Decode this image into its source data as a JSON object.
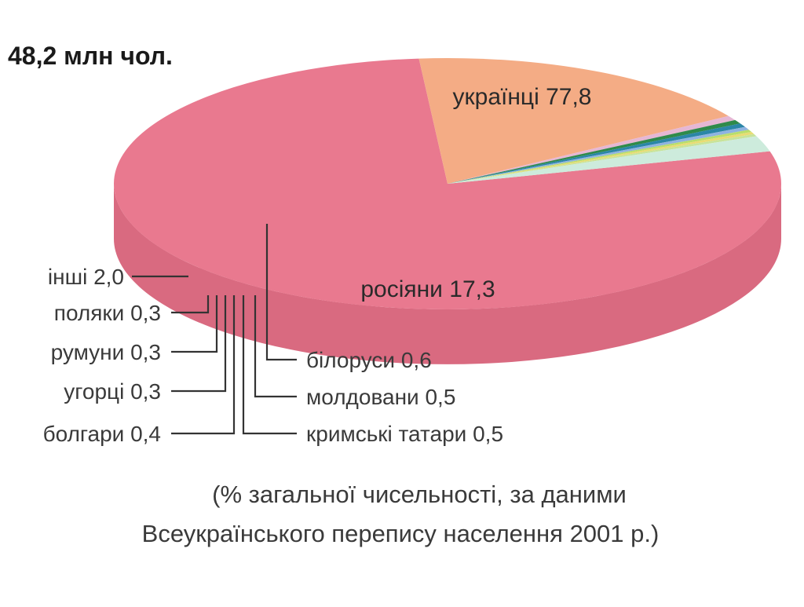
{
  "chart_data": {
    "type": "pie",
    "title": "48,2 млн чол.",
    "slices": [
      {
        "label": "українці",
        "value": 77.8,
        "text": "українці 77,8",
        "color": "#e9798f",
        "side": "#d96a80"
      },
      {
        "label": "росіяни",
        "value": 17.3,
        "text": "росіяни 17,3",
        "color": "#f4ac85",
        "side": "#ee9f78"
      },
      {
        "label": "білоруси",
        "value": 0.6,
        "text": "білоруси 0,6",
        "color": "#e5b7d4",
        "side": "#d9a5c6"
      },
      {
        "label": "молдовани",
        "value": 0.5,
        "text": "молдовани 0,5",
        "color": "#2f8a4a",
        "side": "#1f7a3c"
      },
      {
        "label": "кримські татари",
        "value": 0.5,
        "text": "кримські татари 0,5",
        "color": "#2b86a7",
        "side": "#1f7797"
      },
      {
        "label": "болгари",
        "value": 0.4,
        "text": "болгари 0,4",
        "color": "#8fb3e0",
        "side": "#7aa3d6"
      },
      {
        "label": "угорці",
        "value": 0.3,
        "text": "угорці 0,3",
        "color": "#b9de6a",
        "side": "#a8d255"
      },
      {
        "label": "румуни",
        "value": 0.3,
        "text": "румуни 0,3",
        "color": "#e8dc74",
        "side": "#dccf5e"
      },
      {
        "label": "поляки",
        "value": 0.3,
        "text": "поляки 0,3",
        "color": "#c8e39a",
        "side": "#b7d884"
      },
      {
        "label": "інші",
        "value": 2.0,
        "text": "інші 2,0",
        "color": "#cdebdc",
        "side": "#bde3cf"
      }
    ],
    "caption_lines": [
      "(% загальної чисельності, за даними",
      "Всеукраїнського перепису населення 2001 р.)"
    ]
  }
}
